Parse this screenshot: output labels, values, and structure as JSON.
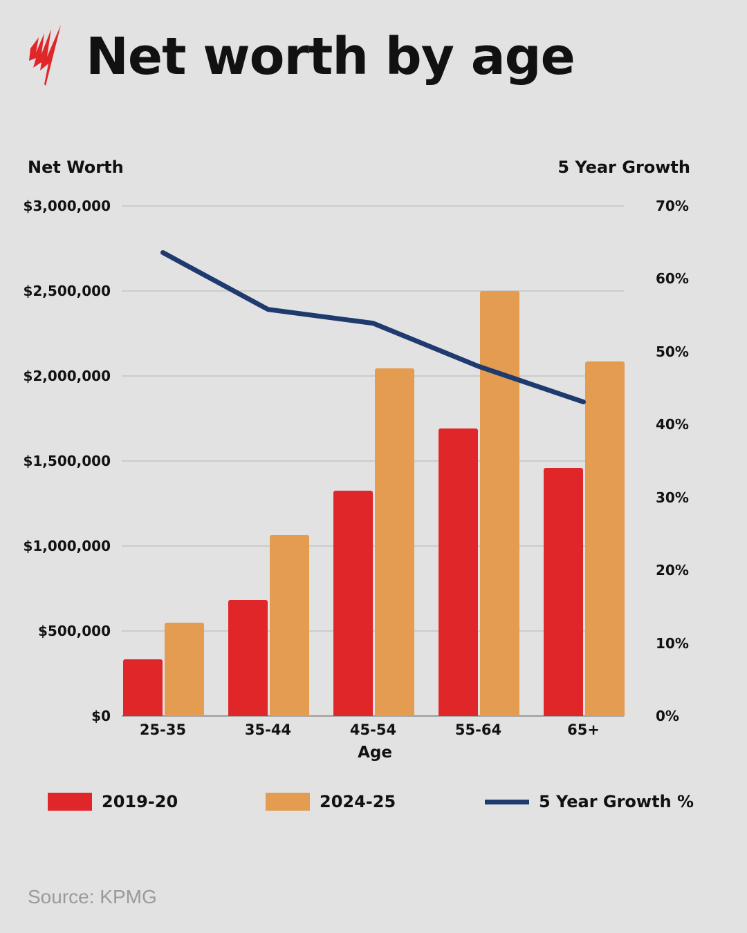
{
  "header": {
    "title": "Net worth by age",
    "logo": "sbs-wave-logo-icon"
  },
  "colors": {
    "background": "#e2e2e2",
    "series_2019": "#e1262a",
    "series_2024": "#e39c50",
    "growth_line": "#1e3a6e",
    "gridline": "#cbcbcb",
    "source_text": "#9a9a9a"
  },
  "axes": {
    "left_title": "Net Worth",
    "right_title": "5 Year Growth",
    "left_ticks": [
      "$0",
      "$500,000",
      "$1,000,000",
      "$1,500,000",
      "$2,000,000",
      "$2,500,000",
      "$3,000,000"
    ],
    "right_ticks": [
      "0%",
      "10%",
      "20%",
      "30%",
      "40%",
      "50%",
      "60%",
      "70%"
    ],
    "x_title": "Age",
    "categories": [
      "25-35",
      "35-44",
      "45-54",
      "55-64",
      "65+"
    ]
  },
  "legend": [
    {
      "label": "2019-20",
      "type": "bar"
    },
    {
      "label": "2024-25",
      "type": "bar"
    },
    {
      "label": "5 Year Growth %",
      "type": "line"
    }
  ],
  "source": "Source: KPMG",
  "chart_data": {
    "type": "bar",
    "title": "Net worth by age",
    "xlabel": "Age",
    "ylabel": "Net Worth",
    "y2label": "5 Year Growth",
    "categories": [
      "25-35",
      "35-44",
      "45-54",
      "55-64",
      "65+"
    ],
    "ylim": [
      0,
      3000000
    ],
    "y2lim": [
      0,
      70
    ],
    "grid": true,
    "legend_position": "bottom",
    "series": [
      {
        "name": "2019-20",
        "type": "bar",
        "axis": "left",
        "values": [
          333000,
          683000,
          1325000,
          1690000,
          1460000
        ]
      },
      {
        "name": "2024-25",
        "type": "bar",
        "axis": "left",
        "values": [
          549000,
          1065000,
          2045000,
          2500000,
          2085000
        ]
      },
      {
        "name": "5 Year Growth %",
        "type": "line",
        "axis": "right",
        "values": [
          63.6,
          55.8,
          53.9,
          48.0,
          43.1
        ]
      }
    ]
  }
}
